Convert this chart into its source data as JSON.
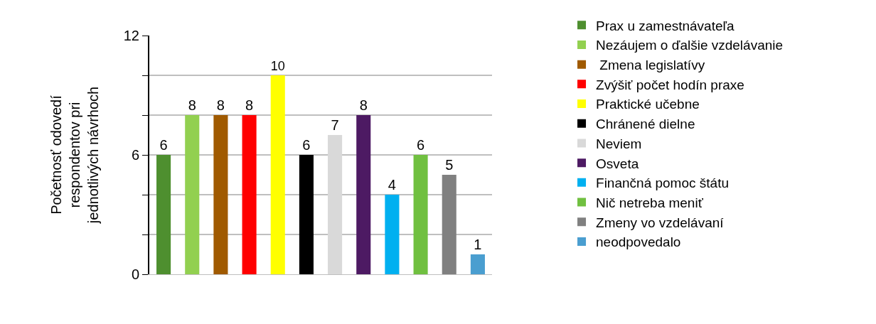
{
  "chart_data": {
    "type": "bar",
    "ylabel": "Početnosť odovedí respondentov pri jednotlivých návrhoch",
    "categories": [
      null,
      null,
      null,
      null,
      null,
      null,
      null,
      null,
      null,
      null,
      null,
      null
    ],
    "series": [
      {
        "name": "Prax u zamestnávateľa",
        "color": "#4e8f2f",
        "values": [
          6,
          null,
          null,
          null,
          null,
          null,
          null,
          null,
          null,
          null,
          null,
          null
        ]
      },
      {
        "name": "Nezáujem o ďalšie vzdelávanie",
        "color": "#92d050",
        "values": [
          null,
          8,
          null,
          null,
          null,
          null,
          null,
          null,
          null,
          null,
          null,
          null
        ]
      },
      {
        "name": " Zmena legislatívy",
        "color": "#a05a00",
        "values": [
          null,
          null,
          8,
          null,
          null,
          null,
          null,
          null,
          null,
          null,
          null,
          null
        ]
      },
      {
        "name": "Zvýšiť počet hodín praxe",
        "color": "#ff0000",
        "values": [
          null,
          null,
          null,
          8,
          null,
          null,
          null,
          null,
          null,
          null,
          null,
          null
        ]
      },
      {
        "name": "Praktické učebne",
        "color": "#ffff00",
        "values": [
          null,
          null,
          null,
          null,
          10,
          null,
          null,
          null,
          null,
          null,
          null,
          null
        ]
      },
      {
        "name": "Chránené dielne",
        "color": "#000000",
        "values": [
          null,
          null,
          null,
          null,
          null,
          6,
          null,
          null,
          null,
          null,
          null,
          null
        ]
      },
      {
        "name": "Neviem",
        "color": "#d9d9d9",
        "values": [
          null,
          null,
          null,
          null,
          null,
          null,
          7,
          null,
          null,
          null,
          null,
          null
        ]
      },
      {
        "name": "Osveta",
        "color": "#4d1a63",
        "values": [
          null,
          null,
          null,
          null,
          null,
          null,
          null,
          8,
          null,
          null,
          null,
          null
        ]
      },
      {
        "name": "Finančná pomoc štátu",
        "color": "#00b0f0",
        "values": [
          null,
          null,
          null,
          null,
          null,
          null,
          null,
          null,
          4,
          null,
          null,
          null
        ]
      },
      {
        "name": "Nič netreba meniť",
        "color": "#70c040",
        "values": [
          null,
          null,
          null,
          null,
          null,
          null,
          null,
          null,
          null,
          6,
          null,
          null
        ]
      },
      {
        "name": "Zmeny vo vzdelávaní",
        "color": "#808080",
        "values": [
          null,
          null,
          null,
          null,
          null,
          null,
          null,
          null,
          null,
          null,
          5,
          null
        ]
      },
      {
        "name": "neodpovedalo",
        "color": "#4a9ed0",
        "values": [
          null,
          null,
          null,
          null,
          null,
          null,
          null,
          null,
          null,
          null,
          null,
          1
        ]
      }
    ],
    "ylim": [
      0,
      12
    ],
    "yticks": [
      0,
      {
        "value": 2,
        "label": null
      },
      {
        "value": 4,
        "label": null
      },
      6,
      {
        "value": 8,
        "label": null
      },
      {
        "value": 10,
        "label": null
      },
      12
    ],
    "grid": "y",
    "legend": "right",
    "data_labels": true
  }
}
